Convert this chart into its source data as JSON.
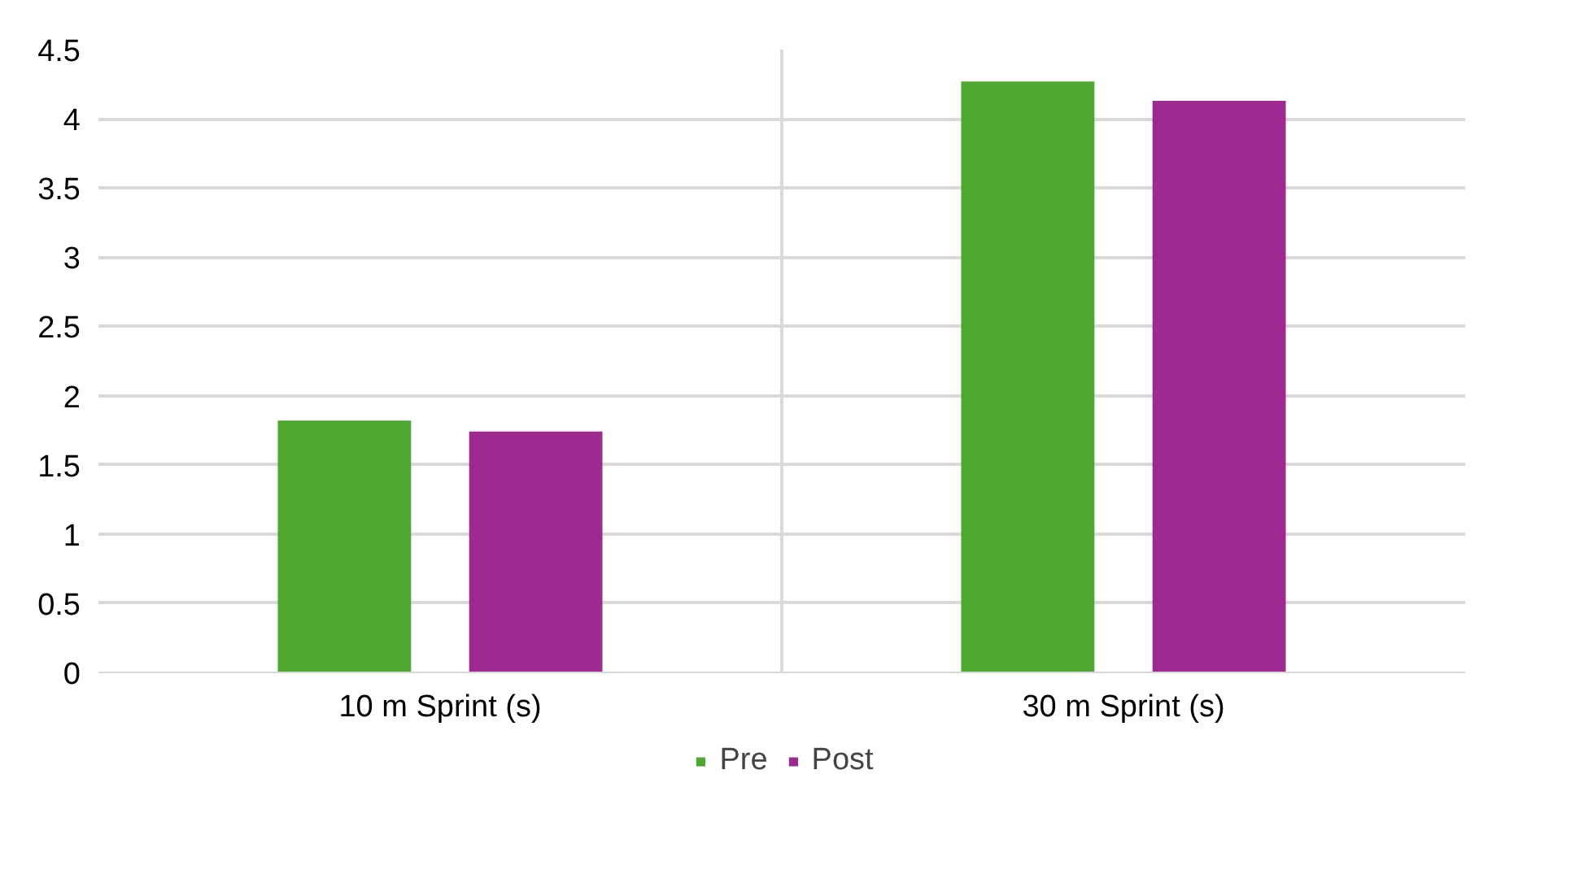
{
  "chart_data": {
    "type": "bar",
    "categories": [
      "10 m Sprint (s)",
      "30 m Sprint (s)"
    ],
    "series": [
      {
        "name": "Pre",
        "color": "#4ea72e",
        "values": [
          1.82,
          4.27
        ]
      },
      {
        "name": "Post",
        "color": "#9e2a91",
        "values": [
          1.74,
          4.13
        ]
      }
    ],
    "ylim": [
      0,
      4.5
    ],
    "yticks": [
      0,
      0.5,
      1,
      1.5,
      2,
      2.5,
      3,
      3.5,
      4,
      4.5
    ],
    "grid": true,
    "legend": "bottom"
  }
}
